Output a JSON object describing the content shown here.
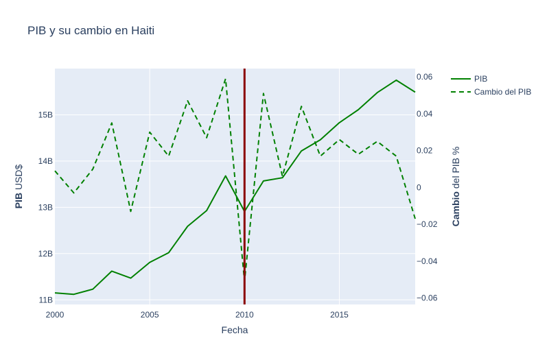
{
  "chart_data": {
    "type": "line",
    "title": "PIB y su cambio en Haiti",
    "xlabel": "Fecha",
    "ylabel_bold": "PIB",
    "ylabel_rest": " USD$",
    "y2label_bold": "Cambio",
    "y2label_rest": " del PIB %",
    "x": [
      2000,
      2001,
      2002,
      2003,
      2004,
      2005,
      2006,
      2007,
      2008,
      2009,
      2010,
      2011,
      2012,
      2013,
      2014,
      2015,
      2016,
      2017,
      2018,
      2019
    ],
    "xlim": [
      2000,
      2019
    ],
    "xticks": [
      2000,
      2005,
      2010,
      2015
    ],
    "xtick_labels": [
      "2000",
      "2005",
      "2010",
      "2015"
    ],
    "ylim": [
      10.9,
      16.0
    ],
    "yticks": [
      11,
      12,
      13,
      14,
      15
    ],
    "ytick_labels": [
      "11B",
      "12B",
      "13B",
      "14B",
      "15B"
    ],
    "y2lim": [
      -0.0635,
      0.0645
    ],
    "y2ticks": [
      -0.06,
      -0.04,
      -0.02,
      0,
      0.02,
      0.04,
      0.06
    ],
    "y2tick_labels": [
      "−0.06",
      "−0.04",
      "−0.02",
      "0",
      "0.02",
      "0.04",
      "0.06"
    ],
    "series": [
      {
        "name": "PIB",
        "axis": "y",
        "dash": "solid",
        "color": "#008000",
        "values": [
          11.15,
          11.12,
          11.23,
          11.62,
          11.47,
          11.81,
          12.02,
          12.59,
          12.93,
          13.68,
          12.91,
          13.57,
          13.64,
          14.22,
          14.46,
          14.83,
          15.11,
          15.48,
          15.75,
          15.49
        ]
      },
      {
        "name": "Cambio del PIB",
        "axis": "y2",
        "dash": "dashed",
        "color": "#008000",
        "values": [
          0.009,
          -0.003,
          0.01,
          0.035,
          -0.013,
          0.03,
          0.017,
          0.047,
          0.027,
          0.059,
          -0.051,
          0.051,
          0.006,
          0.044,
          0.017,
          0.026,
          0.018,
          0.025,
          0.017,
          -0.017
        ]
      }
    ],
    "vertical_line": {
      "x": 2010,
      "color": "#8b0000"
    },
    "grid": true,
    "legend": "top-right, outside plot"
  }
}
